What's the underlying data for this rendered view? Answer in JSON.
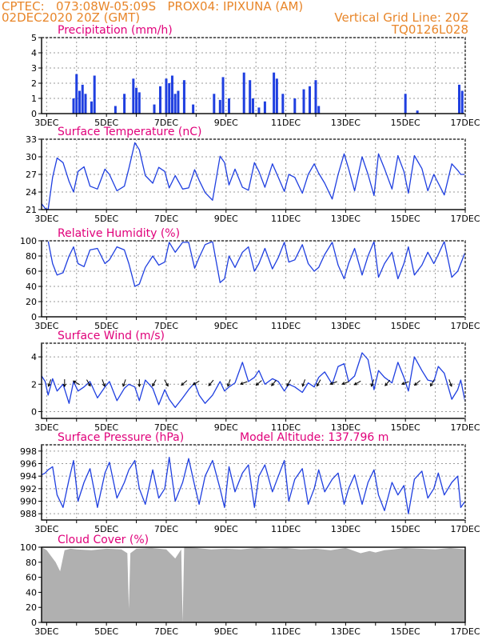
{
  "header": {
    "left_line1": "CPTEC:   073:08W-05:09S   PROX04: IPIXUNA (AM)",
    "left_line2": "02DEC2020 20Z (GMT)",
    "right_line1": "Vertical Grid Line: 20Z",
    "right_line2": "TQ0126L028"
  },
  "colors": {
    "header": "#e8862a",
    "title": "#e0007a",
    "line": "#1f3fe0",
    "bar": "#1f3fe0",
    "cloud": "#b0b0b0",
    "arrow": "#000000"
  },
  "chart_data": [
    {
      "type": "bar",
      "title": "Precipitation (mm/h)",
      "x_tick_labels": [
        "3DEC",
        "5DEC",
        "7DEC",
        "9DEC",
        "11DEC",
        "13DEC",
        "15DEC",
        "17DEC"
      ],
      "x_tick_days": [
        3,
        5,
        7,
        9,
        11,
        13,
        15,
        17
      ],
      "xlim_days": [
        2.83,
        17.0
      ],
      "ylim": [
        0,
        5
      ],
      "yticks": [
        0,
        1,
        2,
        3,
        4,
        5
      ],
      "grid": true,
      "series": [
        {
          "x_days": [
            3.9,
            4.0,
            4.1,
            4.2,
            4.3,
            4.5,
            4.6,
            5.3,
            5.6,
            5.9,
            6.0,
            6.1,
            6.6,
            6.8,
            7.0,
            7.1,
            7.2,
            7.3,
            7.4,
            7.6,
            7.9,
            8.6,
            8.8,
            8.9,
            9.1,
            9.6,
            9.8,
            9.9,
            10.1,
            10.3,
            10.6,
            10.7,
            10.9,
            11.3,
            11.6,
            11.8,
            12.0,
            12.1,
            15.0,
            15.4,
            16.8,
            16.9
          ],
          "values": [
            1.0,
            2.6,
            1.5,
            1.9,
            1.3,
            0.8,
            2.5,
            0.5,
            1.3,
            2.3,
            1.7,
            1.4,
            0.6,
            1.8,
            2.3,
            2.0,
            2.5,
            1.3,
            1.5,
            2.2,
            0.6,
            1.3,
            0.9,
            2.4,
            1.0,
            2.7,
            2.2,
            1.0,
            0.4,
            0.8,
            2.7,
            2.3,
            1.3,
            1.0,
            1.6,
            1.8,
            2.2,
            0.5,
            1.3,
            0.2,
            1.9,
            1.5
          ]
        }
      ]
    },
    {
      "type": "line",
      "title": "Surface Temperature (nC)",
      "x_tick_labels": [
        "3DEC",
        "5DEC",
        "7DEC",
        "9DEC",
        "11DEC",
        "13DEC",
        "15DEC",
        "17DEC"
      ],
      "x_tick_days": [
        3,
        5,
        7,
        9,
        11,
        13,
        15,
        17
      ],
      "xlim_days": [
        2.83,
        17.0
      ],
      "ylim": [
        21,
        33
      ],
      "yticks": [
        21,
        24,
        27,
        30,
        33
      ],
      "grid": true,
      "series": [
        {
          "x_days": [
            2.83,
            2.95,
            3.05,
            3.2,
            3.35,
            3.55,
            3.75,
            3.9,
            4.05,
            4.25,
            4.45,
            4.7,
            4.95,
            5.1,
            5.35,
            5.6,
            5.75,
            5.95,
            6.1,
            6.3,
            6.55,
            6.75,
            6.95,
            7.1,
            7.3,
            7.55,
            7.75,
            7.95,
            8.1,
            8.3,
            8.55,
            8.8,
            8.95,
            9.1,
            9.3,
            9.55,
            9.75,
            9.95,
            10.1,
            10.3,
            10.55,
            10.75,
            10.95,
            11.1,
            11.3,
            11.55,
            11.75,
            11.95,
            12.1,
            12.3,
            12.55,
            12.75,
            12.95,
            13.1,
            13.3,
            13.55,
            13.75,
            13.95,
            14.1,
            14.3,
            14.55,
            14.75,
            14.95,
            15.1,
            15.3,
            15.55,
            15.75,
            15.95,
            16.1,
            16.3,
            16.55,
            16.75,
            16.85,
            17.0
          ],
          "values": [
            22.0,
            21.2,
            21.0,
            26.5,
            29.8,
            29.0,
            25.8,
            24.0,
            27.5,
            28.3,
            25.0,
            24.5,
            27.9,
            27.0,
            24.2,
            25.0,
            28.0,
            32.4,
            31.2,
            26.8,
            25.5,
            28.2,
            27.5,
            24.7,
            26.8,
            24.5,
            24.7,
            27.8,
            26.0,
            23.9,
            22.6,
            30.1,
            29.0,
            25.2,
            27.9,
            24.8,
            24.3,
            29.0,
            27.5,
            24.8,
            28.8,
            26.5,
            24.1,
            27.0,
            26.5,
            23.8,
            27.0,
            28.8,
            27.2,
            25.5,
            22.8,
            27.0,
            30.5,
            28.0,
            24.2,
            30.0,
            27.0,
            23.4,
            30.5,
            28.0,
            24.5,
            30.2,
            27.5,
            23.8,
            30.2,
            28.0,
            24.2,
            27.0,
            25.5,
            23.5,
            28.8,
            27.7,
            27.0,
            27.0
          ]
        }
      ]
    },
    {
      "type": "line",
      "title": "Relative Humidity (%)",
      "x_tick_labels": [
        "3DEC",
        "5DEC",
        "7DEC",
        "9DEC",
        "11DEC",
        "13DEC",
        "15DEC",
        "17DEC"
      ],
      "x_tick_days": [
        3,
        5,
        7,
        9,
        11,
        13,
        15,
        17
      ],
      "xlim_days": [
        2.83,
        17.0
      ],
      "ylim": [
        0,
        100
      ],
      "yticks": [
        0,
        20,
        40,
        60,
        80,
        100
      ],
      "grid": true,
      "series": [
        {
          "x_days": [
            2.83,
            2.95,
            3.05,
            3.2,
            3.35,
            3.55,
            3.75,
            3.9,
            4.05,
            4.25,
            4.45,
            4.7,
            4.95,
            5.1,
            5.35,
            5.6,
            5.75,
            5.95,
            6.1,
            6.3,
            6.55,
            6.75,
            6.95,
            7.1,
            7.3,
            7.55,
            7.75,
            7.95,
            8.1,
            8.3,
            8.55,
            8.8,
            8.95,
            9.1,
            9.3,
            9.55,
            9.75,
            9.95,
            10.1,
            10.3,
            10.55,
            10.75,
            10.95,
            11.1,
            11.3,
            11.55,
            11.75,
            11.95,
            12.1,
            12.3,
            12.55,
            12.75,
            12.95,
            13.1,
            13.3,
            13.55,
            13.75,
            13.95,
            14.1,
            14.3,
            14.55,
            14.75,
            14.95,
            15.1,
            15.3,
            15.55,
            15.75,
            15.95,
            16.1,
            16.3,
            16.55,
            16.75,
            16.85,
            17.0
          ],
          "values": [
            100,
            100,
            100,
            70,
            55,
            58,
            80,
            92,
            70,
            66,
            88,
            90,
            70,
            75,
            92,
            88,
            70,
            40,
            43,
            65,
            80,
            68,
            72,
            98,
            85,
            98,
            98,
            64,
            78,
            95,
            99,
            45,
            50,
            80,
            65,
            85,
            92,
            60,
            70,
            90,
            63,
            78,
            98,
            72,
            75,
            95,
            70,
            60,
            65,
            82,
            98,
            68,
            50,
            70,
            90,
            55,
            80,
            99,
            52,
            70,
            85,
            50,
            70,
            92,
            55,
            68,
            85,
            70,
            82,
            99,
            52,
            60,
            70,
            85
          ]
        }
      ]
    },
    {
      "type": "line",
      "title": "Surface Wind (m/s)",
      "x_tick_labels": [
        "3DEC",
        "5DEC",
        "7DEC",
        "9DEC",
        "11DEC",
        "13DEC",
        "15DEC",
        "17DEC"
      ],
      "x_tick_days": [
        3,
        5,
        7,
        9,
        11,
        13,
        15,
        17
      ],
      "xlim_days": [
        2.83,
        17.0
      ],
      "ylim": [
        -0.5,
        5
      ],
      "yticks": [
        0,
        2,
        4
      ],
      "grid": true,
      "series": [
        {
          "x_days": [
            2.83,
            2.95,
            3.05,
            3.2,
            3.35,
            3.55,
            3.75,
            3.9,
            4.05,
            4.25,
            4.45,
            4.7,
            4.95,
            5.1,
            5.35,
            5.6,
            5.75,
            5.95,
            6.1,
            6.3,
            6.55,
            6.75,
            6.95,
            7.1,
            7.3,
            7.55,
            7.75,
            7.95,
            8.1,
            8.3,
            8.55,
            8.8,
            8.95,
            9.1,
            9.3,
            9.55,
            9.75,
            9.95,
            10.1,
            10.3,
            10.55,
            10.75,
            10.95,
            11.1,
            11.3,
            11.55,
            11.75,
            11.95,
            12.1,
            12.3,
            12.55,
            12.75,
            12.95,
            13.1,
            13.3,
            13.55,
            13.75,
            13.95,
            14.1,
            14.3,
            14.55,
            14.75,
            14.95,
            15.1,
            15.3,
            15.55,
            15.75,
            15.95,
            16.1,
            16.3,
            16.55,
            16.75,
            16.85,
            17.0
          ],
          "values": [
            2.6,
            2.2,
            1.2,
            2.4,
            1.5,
            2.0,
            0.6,
            2.2,
            1.5,
            1.8,
            2.2,
            1.0,
            1.8,
            2.2,
            0.8,
            1.7,
            2.0,
            1.8,
            0.8,
            2.3,
            1.7,
            0.5,
            1.6,
            0.9,
            0.3,
            1.0,
            1.6,
            2.1,
            1.2,
            0.6,
            1.2,
            2.2,
            1.5,
            1.8,
            2.1,
            3.6,
            2.2,
            2.5,
            3.0,
            2.0,
            2.4,
            2.2,
            1.5,
            2.0,
            1.8,
            1.4,
            2.1,
            1.8,
            2.5,
            2.9,
            2.0,
            3.3,
            3.5,
            2.2,
            2.6,
            4.3,
            3.8,
            1.6,
            3.0,
            2.5,
            2.1,
            3.6,
            2.5,
            1.5,
            4.0,
            3.0,
            2.3,
            2.2,
            3.3,
            2.8,
            0.9,
            1.6,
            2.3,
            0.7
          ]
        }
      ],
      "arrows": {
        "x_days": [
          3.1,
          3.6,
          4.0,
          4.4,
          4.9,
          5.6,
          6.1,
          6.6,
          7.0,
          7.6,
          8.0,
          8.5,
          9.1,
          9.6,
          10.1,
          10.6,
          11.1,
          11.6,
          12.1,
          12.6,
          13.0,
          13.4,
          13.9,
          14.4,
          15.0,
          15.4,
          15.9,
          16.5
        ],
        "directions_deg": [
          200,
          180,
          300,
          150,
          160,
          200,
          180,
          210,
          150,
          230,
          240,
          220,
          200,
          250,
          230,
          220,
          210,
          200,
          210,
          250,
          250,
          240,
          200,
          220,
          250,
          230,
          210,
          160
        ]
      }
    },
    {
      "type": "line",
      "title": "Surface Pressure (hPa)",
      "annotation": "Model Altitude: 137.796 m",
      "x_tick_labels": [
        "3DEC",
        "5DEC",
        "7DEC",
        "9DEC",
        "11DEC",
        "13DEC",
        "15DEC",
        "17DEC"
      ],
      "x_tick_days": [
        3,
        5,
        7,
        9,
        11,
        13,
        15,
        17
      ],
      "xlim_days": [
        2.83,
        17.0
      ],
      "ylim": [
        987,
        999
      ],
      "yticks": [
        988,
        990,
        992,
        994,
        996,
        998
      ],
      "grid": true,
      "series": [
        {
          "x_days": [
            2.83,
            2.95,
            3.05,
            3.2,
            3.35,
            3.55,
            3.75,
            3.9,
            4.05,
            4.25,
            4.45,
            4.7,
            4.95,
            5.1,
            5.35,
            5.6,
            5.75,
            5.95,
            6.1,
            6.3,
            6.55,
            6.75,
            6.95,
            7.1,
            7.3,
            7.55,
            7.75,
            7.95,
            8.1,
            8.3,
            8.55,
            8.8,
            8.95,
            9.1,
            9.3,
            9.55,
            9.75,
            9.95,
            10.1,
            10.3,
            10.55,
            10.75,
            10.95,
            11.1,
            11.3,
            11.55,
            11.75,
            11.95,
            12.1,
            12.3,
            12.55,
            12.75,
            12.95,
            13.1,
            13.3,
            13.55,
            13.75,
            13.95,
            14.1,
            14.3,
            14.55,
            14.75,
            14.95,
            15.1,
            15.3,
            15.55,
            15.75,
            15.95,
            16.1,
            16.3,
            16.55,
            16.75,
            16.85,
            17.0
          ],
          "values": [
            994.2,
            994.5,
            995.0,
            995.5,
            991.0,
            989.0,
            993.5,
            996.5,
            990.0,
            993.0,
            995.2,
            989.0,
            994.5,
            996.2,
            990.5,
            993.0,
            995.0,
            996.5,
            992.0,
            989.5,
            995.0,
            990.5,
            992.0,
            997.0,
            990.0,
            993.0,
            996.8,
            992.5,
            989.5,
            994.0,
            996.5,
            992.0,
            989.0,
            995.5,
            991.5,
            994.5,
            995.8,
            989.0,
            994.0,
            995.8,
            991.5,
            994.0,
            996.5,
            990.0,
            993.5,
            995.2,
            989.5,
            992.0,
            995.0,
            991.5,
            993.5,
            994.5,
            989.5,
            992.0,
            994.2,
            989.5,
            993.0,
            995.0,
            991.0,
            988.5,
            993.0,
            991.0,
            992.5,
            988.0,
            993.5,
            994.8,
            990.5,
            992.0,
            994.5,
            991.0,
            993.0,
            994.0,
            989.0,
            990.0
          ]
        }
      ]
    },
    {
      "type": "area",
      "title": "Cloud Cover (%)",
      "x_tick_labels": [
        "3DEC",
        "5DEC",
        "7DEC",
        "9DEC",
        "11DEC",
        "13DEC",
        "15DEC",
        "17DEC"
      ],
      "x_tick_days": [
        3,
        5,
        7,
        9,
        11,
        13,
        15,
        17
      ],
      "xlim_days": [
        2.83,
        17.0
      ],
      "ylim": [
        0,
        100
      ],
      "yticks": [
        0,
        20,
        40,
        60,
        80,
        100
      ],
      "grid": false,
      "series": [
        {
          "x_days": [
            2.83,
            3.0,
            3.3,
            3.45,
            3.6,
            3.8,
            4.0,
            4.5,
            5.0,
            5.5,
            5.7,
            5.75,
            5.8,
            6.0,
            6.5,
            7.0,
            7.3,
            7.5,
            7.55,
            7.6,
            8.0,
            8.5,
            9.0,
            9.5,
            10.0,
            10.5,
            11.0,
            11.5,
            12.0,
            12.5,
            13.0,
            13.5,
            13.8,
            14.0,
            14.3,
            14.6,
            15.0,
            15.5,
            16.0,
            16.5,
            17.0
          ],
          "values": [
            100,
            96,
            80,
            68,
            96,
            98,
            97,
            96,
            98,
            97,
            92,
            18,
            92,
            98,
            99,
            97,
            85,
            97,
            0,
            100,
            99,
            97,
            98,
            97,
            99,
            98,
            99,
            97,
            98,
            96,
            99,
            92,
            95,
            93,
            96,
            97,
            99,
            98,
            97,
            99,
            97
          ]
        }
      ]
    }
  ]
}
